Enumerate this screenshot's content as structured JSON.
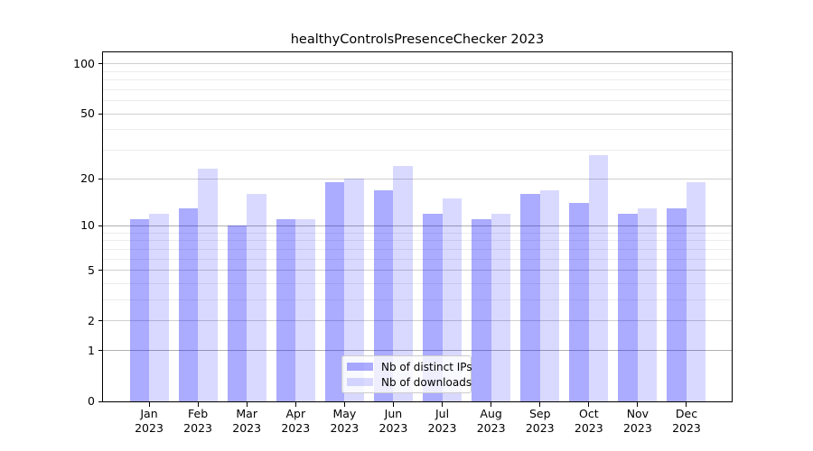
{
  "title": "healthyControlsPresenceChecker 2023",
  "chart_data": {
    "type": "bar",
    "x_categories": [
      {
        "month": "Jan",
        "year": "2023"
      },
      {
        "month": "Feb",
        "year": "2023"
      },
      {
        "month": "Mar",
        "year": "2023"
      },
      {
        "month": "Apr",
        "year": "2023"
      },
      {
        "month": "May",
        "year": "2023"
      },
      {
        "month": "Jun",
        "year": "2023"
      },
      {
        "month": "Jul",
        "year": "2023"
      },
      {
        "month": "Aug",
        "year": "2023"
      },
      {
        "month": "Sep",
        "year": "2023"
      },
      {
        "month": "Oct",
        "year": "2023"
      },
      {
        "month": "Nov",
        "year": "2023"
      },
      {
        "month": "Dec",
        "year": "2023"
      }
    ],
    "series": [
      {
        "name": "Nb of distinct IPs",
        "values": [
          11,
          13,
          10,
          11,
          19,
          17,
          12,
          11,
          16,
          14,
          12,
          13
        ],
        "color": "rgba(0,0,255,0.33)"
      },
      {
        "name": "Nb of downloads",
        "values": [
          12,
          23,
          16,
          11,
          20,
          24,
          15,
          12,
          17,
          28,
          13,
          19
        ],
        "color": "rgba(0,0,255,0.15)"
      }
    ],
    "yscale": "log1p",
    "y_axis": {
      "ticks": [
        0,
        1,
        2,
        5,
        10,
        20,
        50,
        100
      ],
      "emphasized_gridlines": [
        1,
        10
      ],
      "minor_gridlines": [
        3,
        4,
        6,
        7,
        8,
        9,
        30,
        40,
        60,
        70,
        80,
        90
      ],
      "ylim": [
        0,
        117
      ]
    },
    "grid": true,
    "legend": {
      "position": "lower-center"
    }
  },
  "colors": {
    "bar_distinct_ips": "rgba(0,0,255,0.33)",
    "bar_downloads": "rgba(0,0,255,0.15)",
    "grid_major": "#cfcfcf",
    "grid_minor": "#ececec",
    "axis": "#000000",
    "background": "#ffffff"
  }
}
